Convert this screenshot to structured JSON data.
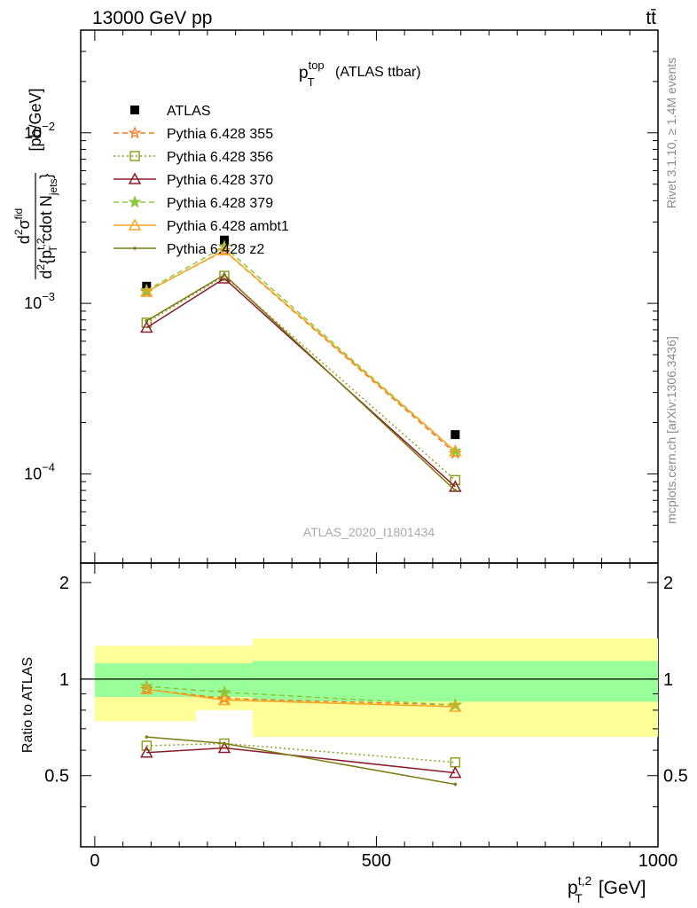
{
  "header": {
    "left": "13000 GeV pp",
    "right": "tt̄"
  },
  "side_text": {
    "rivet": "Rivet 3.1.10, ≥ 1.4M events",
    "mcplots": "mcplots.cern.ch [arXiv:1306.3436]"
  },
  "watermark": "ATLAS_2020_I1801434",
  "plot_title": {
    "main": "p",
    "sup": "top",
    "sub": "T",
    "suffix": "(ATLAS ttbar)"
  },
  "ylabel_main": {
    "frac_num": "d",
    "frac_num_super": "2",
    "frac_num_sigma": "σ",
    "frac_num_sigma_super": "fid",
    "frac_den": "d",
    "frac_den_super": "2",
    "frac_den_body": "{p",
    "frac_den_pt_sup": "t,2",
    "frac_den_pt_sub": "T",
    "frac_den_rest": " cdot N",
    "frac_den_jets_sub": "jets",
    "frac_den_close": "}",
    "unit": "[pb/GeV]"
  },
  "ylabel_ratio": "Ratio to ATLAS",
  "xlabel": {
    "base": "p",
    "sup": "t,2",
    "sub": "T",
    "unit": "[GeV]"
  },
  "chart_data": [
    {
      "panel": "main",
      "type": "line",
      "title": "p_T^top (ATLAS ttbar)",
      "yscale": "log",
      "ylim": [
        3e-05,
        0.04
      ],
      "xlim": [
        -25,
        1000
      ],
      "yticks": [
        {
          "value": 0.01,
          "base": "10",
          "exp": "−2"
        },
        {
          "value": 0.001,
          "base": "10",
          "exp": "−3"
        },
        {
          "value": 0.0001,
          "base": "10",
          "exp": "−4"
        }
      ],
      "legend_position": "top-left",
      "series": [
        {
          "name": "ATLAS",
          "color": "#000000",
          "marker": "filled-square",
          "x": [
            92,
            230,
            640
          ],
          "y": [
            0.00126,
            0.00235,
            0.00017
          ]
        },
        {
          "name": "Pythia 6.428 355",
          "color": "#f47a20",
          "marker": "open-star",
          "dash": "6,4",
          "x": [
            92,
            230,
            640
          ],
          "y": [
            0.00117,
            0.00204,
            0.000132
          ]
        },
        {
          "name": "Pythia 6.428 356",
          "color": "#8fa020",
          "marker": "open-square",
          "dash": "2,3",
          "x": [
            92,
            230,
            640
          ],
          "y": [
            0.00077,
            0.00145,
            9.2e-05
          ]
        },
        {
          "name": "Pythia 6.428 370",
          "color": "#8b1a2b",
          "marker": "open-triangle",
          "dash": "",
          "x": [
            92,
            230,
            640
          ],
          "y": [
            0.00072,
            0.0014,
            8.4e-05
          ]
        },
        {
          "name": "Pythia 6.428 379",
          "color": "#8cc63e",
          "marker": "filled-star",
          "dash": "6,4",
          "x": [
            92,
            230,
            640
          ],
          "y": [
            0.00119,
            0.00215,
            0.000136
          ]
        },
        {
          "name": "Pythia 6.428 ambt1",
          "color": "#f5a623",
          "marker": "open-triangle",
          "dash": "",
          "x": [
            92,
            230,
            640
          ],
          "y": [
            0.00117,
            0.00205,
            0.000136
          ]
        },
        {
          "name": "Pythia 6.428 z2",
          "color": "#7a7a10",
          "marker": "dot",
          "dash": "",
          "x": [
            92,
            230,
            640
          ],
          "y": [
            0.00079,
            0.00147,
            8e-05
          ]
        }
      ]
    },
    {
      "panel": "ratio",
      "type": "line",
      "ylabel": "Ratio to ATLAS",
      "xlabel": "p_T^{t,2} [GeV]",
      "ylim": [
        0.3,
        2.3
      ],
      "xlim": [
        -25,
        1000
      ],
      "yticks": [
        0.5,
        1,
        2
      ],
      "xticks": [
        0,
        500,
        1000
      ],
      "bands": [
        {
          "x0": 0,
          "x1": 180,
          "yellow": [
            0.74,
            1.27
          ],
          "green": [
            0.88,
            1.12
          ]
        },
        {
          "x0": 180,
          "x1": 280,
          "yellow": [
            0.8,
            1.27
          ],
          "green": [
            0.88,
            1.12
          ]
        },
        {
          "x0": 280,
          "x1": 1000,
          "yellow": [
            0.66,
            1.34
          ],
          "green": [
            0.85,
            1.14
          ]
        }
      ],
      "series": [
        {
          "name": "Pythia 6.428 355",
          "color": "#f47a20",
          "marker": "open-star",
          "dash": "6,4",
          "x": [
            92,
            230,
            640
          ],
          "y": [
            0.93,
            0.87,
            0.83
          ]
        },
        {
          "name": "Pythia 6.428 356",
          "color": "#8fa020",
          "marker": "open-square",
          "dash": "2,3",
          "x": [
            92,
            230,
            640
          ],
          "y": [
            0.62,
            0.63,
            0.55
          ]
        },
        {
          "name": "Pythia 6.428 370",
          "color": "#8b1a2b",
          "marker": "open-triangle",
          "dash": "",
          "x": [
            92,
            230,
            640
          ],
          "y": [
            0.59,
            0.61,
            0.51
          ]
        },
        {
          "name": "Pythia 6.428 379",
          "color": "#8cc63e",
          "marker": "filled-star",
          "dash": "6,4",
          "x": [
            92,
            230,
            640
          ],
          "y": [
            0.95,
            0.91,
            0.83
          ]
        },
        {
          "name": "Pythia 6.428 ambt1",
          "color": "#f5a623",
          "marker": "open-triangle",
          "dash": "",
          "x": [
            92,
            230,
            640
          ],
          "y": [
            0.93,
            0.86,
            0.82
          ]
        },
        {
          "name": "Pythia 6.428 z2",
          "color": "#7a7a10",
          "marker": "dot",
          "dash": "",
          "x": [
            92,
            230,
            640
          ],
          "y": [
            0.66,
            0.63,
            0.47
          ]
        }
      ]
    }
  ]
}
